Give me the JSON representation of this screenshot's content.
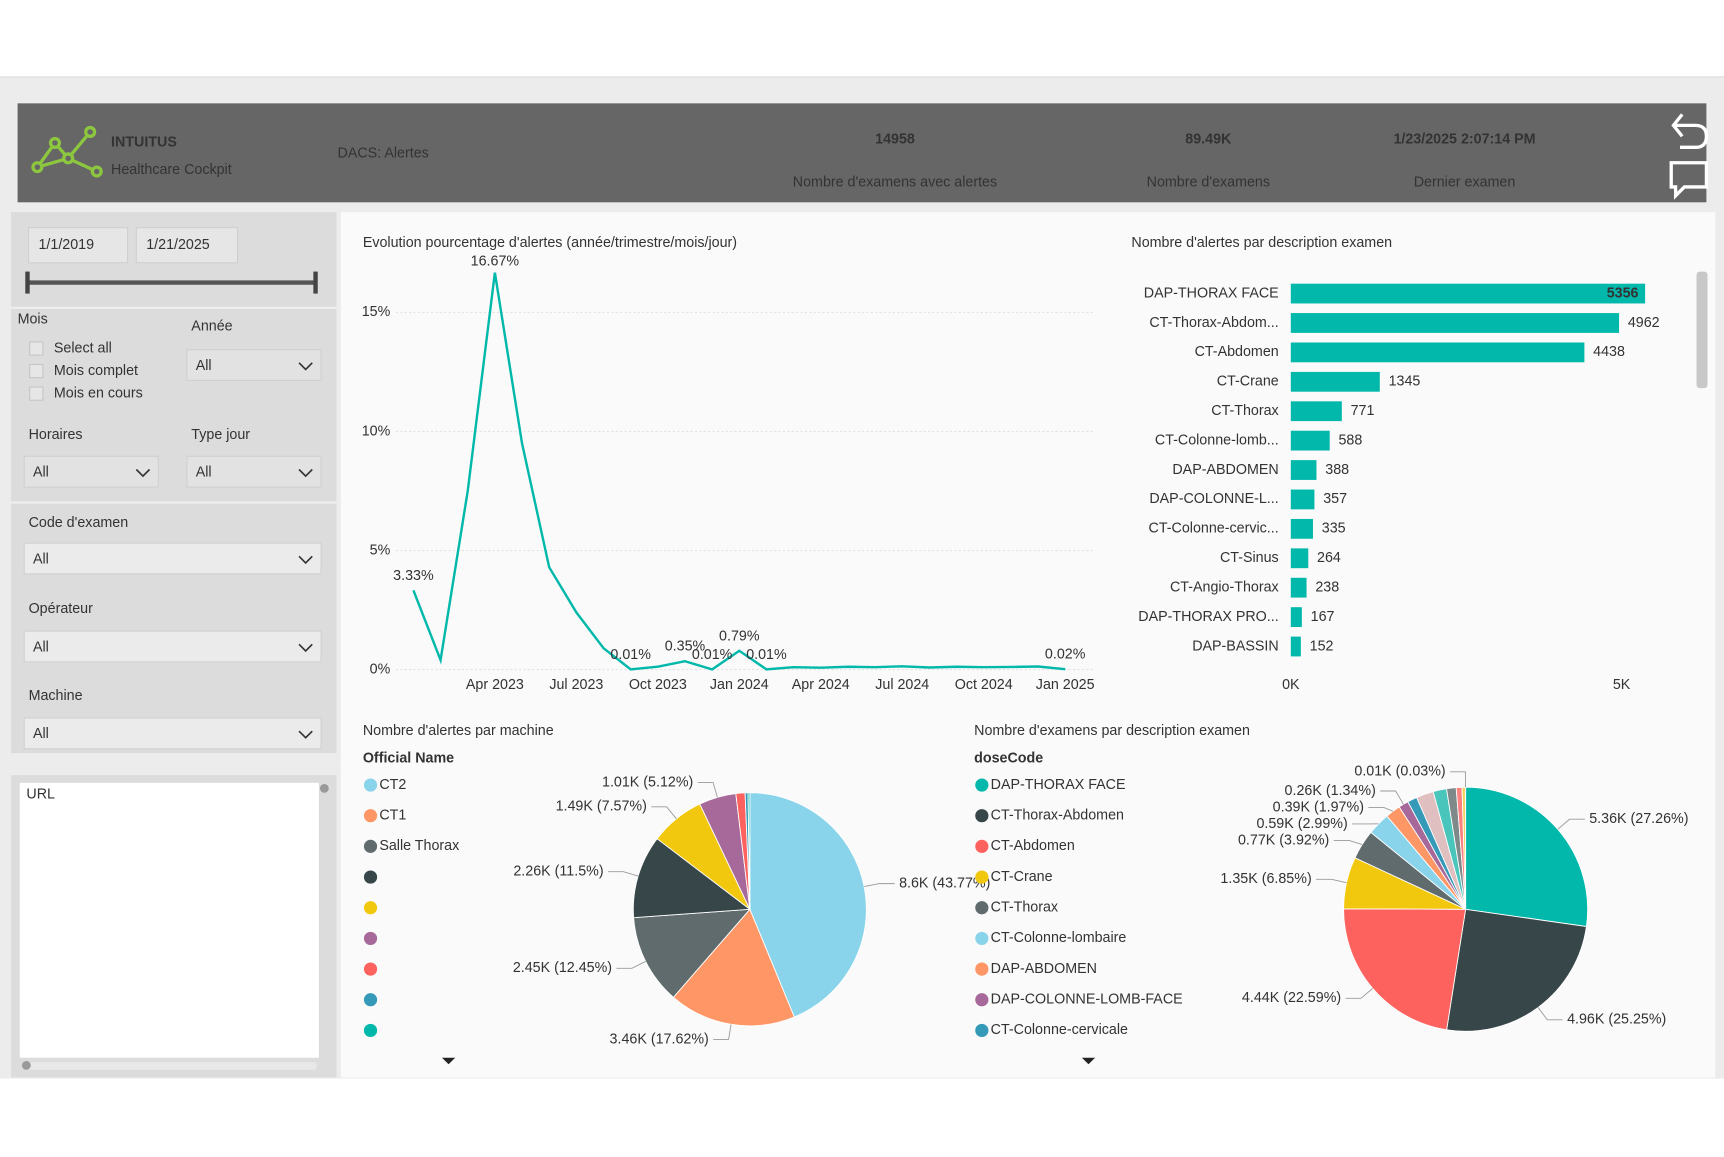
{
  "header": {
    "logo": "INTUITUS",
    "logo_subtitle": "Healthcare Cockpit",
    "title": "DACS: Alertes",
    "kpis": [
      {
        "value": "14958",
        "label": "Nombre d'examens avec alertes"
      },
      {
        "value": "89.49K",
        "label": "Nombre d'examens"
      },
      {
        "value": "1/23/2025 2:07:14 PM",
        "label": "Dernier examen"
      }
    ]
  },
  "filters": {
    "date_range": [
      "1/1/2019",
      "1/21/2025"
    ],
    "mois": {
      "label": "Mois",
      "options": [
        "Select all",
        "Mois complet",
        "Mois en cours"
      ]
    },
    "dropdowns": [
      {
        "label": "Année",
        "value": "All"
      },
      {
        "label": "Horaires",
        "value": "All"
      },
      {
        "label": "Type jour",
        "value": "All"
      },
      {
        "label": "Code d'examen",
        "value": "All"
      },
      {
        "label": "Opérateur",
        "value": "All"
      },
      {
        "label": "Machine",
        "value": "All"
      }
    ],
    "url": {
      "label": "URL"
    }
  },
  "chart_data": [
    {
      "type": "line",
      "title": "Evolution pourcentage d'alertes (année/trimestre/mois/jour)",
      "categories": [
        null,
        null,
        null,
        "Apr 2023",
        null,
        null,
        "Jul 2023",
        null,
        null,
        "Oct 2023",
        null,
        null,
        "Jan 2024",
        null,
        null,
        "Apr 2024",
        null,
        null,
        "Jul 2024",
        null,
        null,
        "Oct 2024",
        null,
        null,
        "Jan 2025"
      ],
      "series": [
        {
          "color": "#01B8AA",
          "values": [
            3.33,
            0.4,
            7.5,
            16.67,
            9.5,
            4.3,
            2.4,
            0.9,
            0.01,
            0.12,
            0.35,
            0.01,
            0.79,
            0.01,
            0.1,
            0.08,
            0.12,
            0.1,
            0.14,
            0.09,
            0.12,
            0.1,
            0.11,
            0.13,
            0.02
          ],
          "value_labels": [
            "3.33%",
            null,
            null,
            "16.67%",
            null,
            null,
            null,
            null,
            "0.01%",
            null,
            "0.35%",
            "0.01%",
            "0.79%",
            "0.01%",
            null,
            null,
            null,
            null,
            null,
            null,
            null,
            null,
            null,
            null,
            "0.02%"
          ]
        }
      ],
      "ylim": [
        0,
        17.5
      ],
      "yticks": [
        {
          "value": 0,
          "label": "0%"
        },
        {
          "value": 5,
          "label": "5%"
        },
        {
          "value": 10,
          "label": "10%"
        },
        {
          "value": 15,
          "label": "15%"
        }
      ],
      "grid": true
    },
    {
      "type": "barh",
      "title": "Nombre d'alertes par description examen",
      "color": "#01B8AA",
      "categories": [
        "DAP-THORAX FACE",
        "CT-Thorax-Abdom...",
        "CT-Abdomen",
        "CT-Crane",
        "CT-Thorax",
        "CT-Colonne-lomb...",
        "DAP-ABDOMEN",
        "DAP-COLONNE-L...",
        "CT-Colonne-cervic...",
        "CT-Sinus",
        "CT-Angio-Thorax",
        "DAP-THORAX PRO...",
        "DAP-BASSIN"
      ],
      "values": [
        5356,
        4962,
        4438,
        1345,
        771,
        588,
        388,
        357,
        335,
        264,
        238,
        167,
        152
      ],
      "xlim": [
        0,
        6000
      ],
      "xticks": [
        {
          "value": 0,
          "label": "0K"
        },
        {
          "value": 5000,
          "label": "5K"
        }
      ]
    },
    {
      "type": "pie",
      "title": "Nombre d'alertes par machine",
      "legend_title": "Official Name",
      "categories": [
        "CT2",
        "CT1",
        "Salle Thorax",
        null,
        null,
        null,
        null,
        null,
        null
      ],
      "values": [
        8600,
        3460,
        2450,
        2260,
        1490,
        1010,
        250,
        80,
        48
      ],
      "value_labels": [
        "8.6K (43.77%)",
        "3.46K (17.62%)",
        "2.45K (12.45%)",
        "2.26K (11.5%)",
        "1.49K (7.57%)",
        "1.01K (5.12%)",
        null,
        null,
        null
      ],
      "colors": [
        "#8AD4EB",
        "#FE9666",
        "#5F6B6D",
        "#374649",
        "#F2C80F",
        "#A66999",
        "#FD625E",
        "#3599B8",
        "#01B8AA"
      ]
    },
    {
      "type": "pie",
      "title": "Nombre d'examens par description examen",
      "legend_title": "doseCode",
      "categories": [
        "DAP-THORAX FACE",
        "CT-Thorax-Abdomen",
        "CT-Abdomen",
        "CT-Crane",
        "CT-Thorax",
        "CT-Colonne-lombaire",
        "DAP-ABDOMEN",
        "DAP-COLONNE-LOMB-FACE",
        "CT-Colonne-cervicale",
        null,
        null,
        null,
        null,
        null,
        null
      ],
      "values": [
        5360,
        4960,
        4440,
        1350,
        770,
        590,
        390,
        260,
        250,
        450,
        350,
        250,
        150,
        86,
        6
      ],
      "value_labels": [
        "5.36K (27.26%)",
        "4.96K (25.25%)",
        "4.44K (22.59%)",
        "1.35K (6.85%)",
        "0.77K (3.92%)",
        "0.59K (2.99%)",
        "0.39K (1.97%)",
        "0.26K (1.34%)",
        null,
        null,
        null,
        null,
        null,
        null,
        "0.01K (0.03%)"
      ],
      "colors": [
        "#01B8AA",
        "#374649",
        "#FD625E",
        "#F2C80F",
        "#5F6B6D",
        "#8AD4EB",
        "#FE9666",
        "#A66999",
        "#3599B8",
        "#DFBFBF",
        "#4AC5BB",
        "#7F898A",
        "#FB8281",
        "#F4D25A",
        "#A4DDEE"
      ]
    }
  ]
}
